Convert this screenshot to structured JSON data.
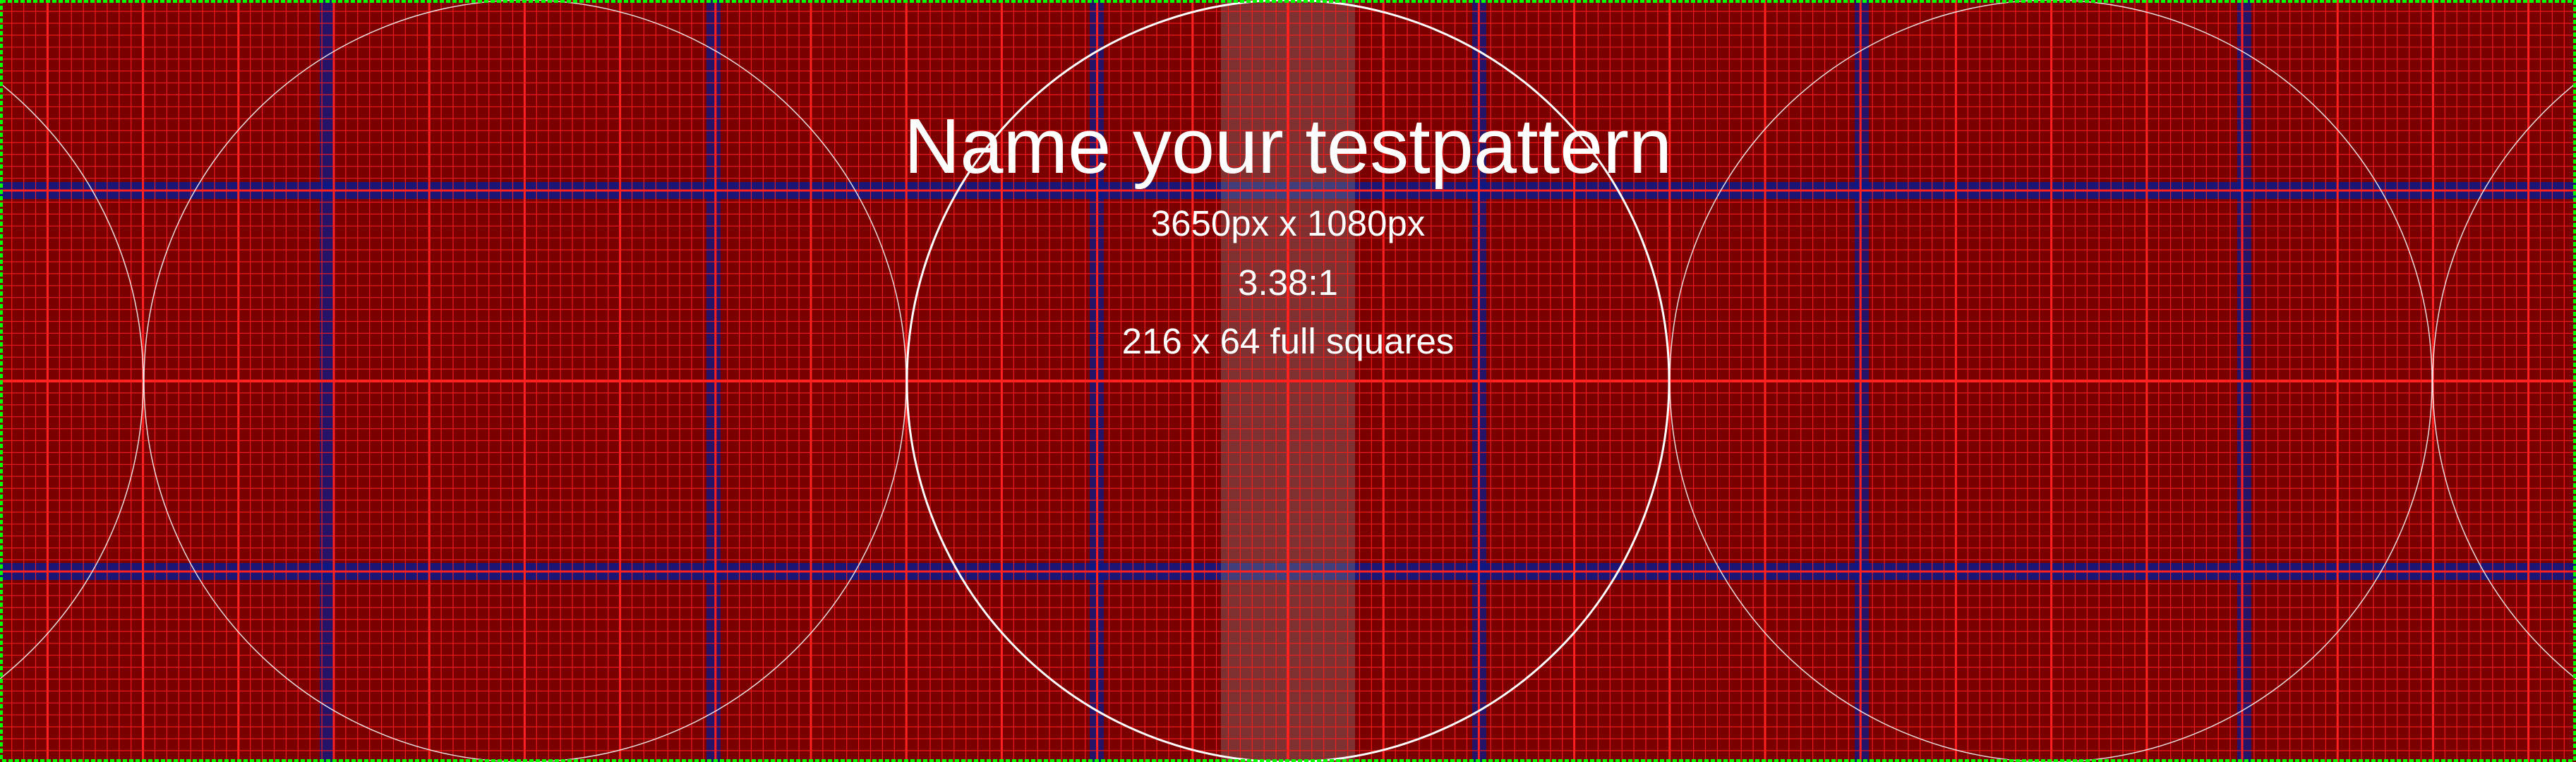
{
  "pattern": {
    "title": "Name your testpattern",
    "dimensions": "3650px x 1080px",
    "aspect_ratio": "3.38:1",
    "full_squares": "216 x 64 full squares",
    "colors": {
      "background": "#7a0000",
      "grid_line": "#ff2020",
      "major_line": "#ff2020",
      "blue_band": "#0a1a8a",
      "circle": "#ffffff",
      "border": "#00ff00",
      "center_band": "#8a8a8a",
      "text": "#ffffff"
    }
  }
}
